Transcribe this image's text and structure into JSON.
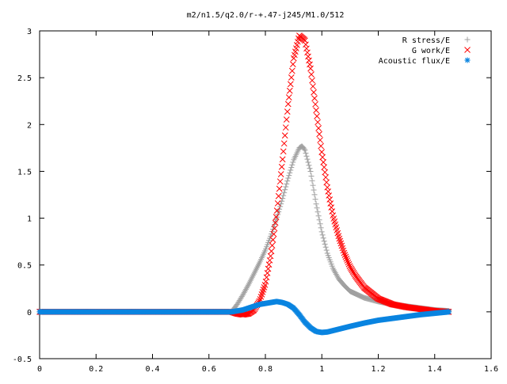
{
  "chart_data": {
    "type": "scatter",
    "title": "m2/n1.5/q2.0/r-+.47-j245/M1.0/512",
    "xlabel": "",
    "ylabel": "",
    "xlim": [
      0,
      1.6
    ],
    "ylim": [
      -0.5,
      3
    ],
    "xticks": [
      "0",
      "0.2",
      "0.4",
      "0.6",
      "0.8",
      "1",
      "1.2",
      "1.4",
      "1.6"
    ],
    "yticks": [
      "-0.5",
      "0",
      "0.5",
      "1",
      "1.5",
      "2",
      "2.5",
      "3"
    ],
    "grid": false,
    "legend_position": "top-right",
    "x_range": [
      0,
      1.45
    ],
    "series": [
      {
        "name": "R stress/E",
        "marker": "plus",
        "color": "#a0a0a0",
        "x": [
          0.0,
          0.68,
          0.7,
          0.72,
          0.74,
          0.76,
          0.78,
          0.8,
          0.82,
          0.84,
          0.86,
          0.88,
          0.9,
          0.92,
          0.93,
          0.94,
          0.96,
          0.98,
          1.0,
          1.02,
          1.04,
          1.06,
          1.08,
          1.1,
          1.15,
          1.2,
          1.25,
          1.3,
          1.35,
          1.4,
          1.45
        ],
        "y": [
          0.0,
          0.0,
          0.08,
          0.18,
          0.29,
          0.41,
          0.53,
          0.66,
          0.82,
          1.0,
          1.2,
          1.42,
          1.62,
          1.75,
          1.77,
          1.73,
          1.5,
          1.15,
          0.85,
          0.62,
          0.46,
          0.35,
          0.28,
          0.22,
          0.15,
          0.11,
          0.08,
          0.06,
          0.04,
          0.02,
          0.01
        ]
      },
      {
        "name": "G work/E",
        "marker": "cross",
        "color": "#ff0000",
        "x": [
          0.0,
          0.68,
          0.7,
          0.72,
          0.74,
          0.76,
          0.78,
          0.8,
          0.82,
          0.84,
          0.86,
          0.88,
          0.9,
          0.92,
          0.94,
          0.96,
          0.98,
          1.0,
          1.02,
          1.04,
          1.06,
          1.08,
          1.1,
          1.12,
          1.15,
          1.2,
          1.25,
          1.3,
          1.35,
          1.4,
          1.45
        ],
        "y": [
          0.0,
          0.0,
          -0.02,
          -0.03,
          -0.02,
          0.02,
          0.12,
          0.3,
          0.62,
          1.05,
          1.6,
          2.2,
          2.7,
          2.95,
          2.9,
          2.6,
          2.15,
          1.7,
          1.32,
          1.02,
          0.8,
          0.62,
          0.48,
          0.38,
          0.26,
          0.14,
          0.08,
          0.05,
          0.03,
          0.01,
          0.0
        ]
      },
      {
        "name": "Acoustic flux/E",
        "marker": "star",
        "color": "#0a84e0",
        "x": [
          0.0,
          0.68,
          0.7,
          0.72,
          0.74,
          0.76,
          0.78,
          0.8,
          0.82,
          0.84,
          0.86,
          0.88,
          0.9,
          0.92,
          0.94,
          0.96,
          0.98,
          1.0,
          1.02,
          1.04,
          1.06,
          1.08,
          1.1,
          1.15,
          1.2,
          1.25,
          1.3,
          1.35,
          1.4,
          1.45
        ],
        "y": [
          0.0,
          0.0,
          0.01,
          0.02,
          0.04,
          0.06,
          0.08,
          0.09,
          0.1,
          0.11,
          0.1,
          0.08,
          0.04,
          -0.03,
          -0.11,
          -0.17,
          -0.21,
          -0.22,
          -0.215,
          -0.2,
          -0.185,
          -0.17,
          -0.155,
          -0.12,
          -0.09,
          -0.07,
          -0.05,
          -0.03,
          -0.015,
          0.0
        ]
      }
    ]
  }
}
